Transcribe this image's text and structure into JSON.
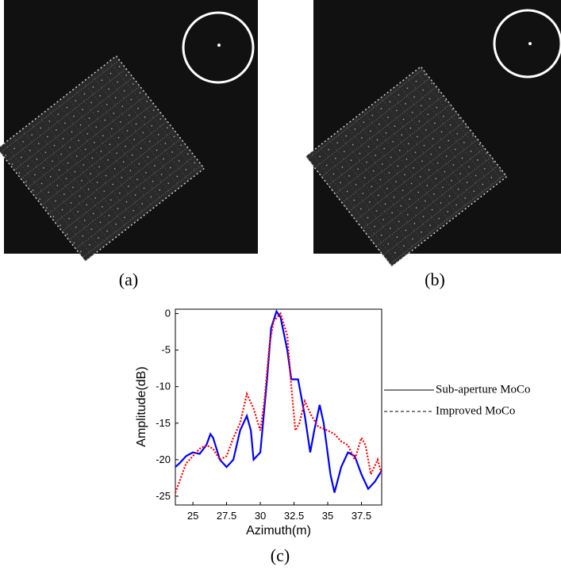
{
  "panel_labels": [
    "(a)",
    "(b)",
    "(c)"
  ],
  "chart_data": {
    "type": "line",
    "xlabel": "Azimuth(m)",
    "ylabel": "Amplitude(dB)",
    "xlim": [
      23.7,
      39
    ],
    "ylim": [
      -26.2,
      0.6
    ],
    "xticks": [
      25,
      27.5,
      30,
      32.5,
      35,
      37.5
    ],
    "yticks": [
      0,
      -5,
      -10,
      -15,
      -20,
      -25
    ],
    "series": [
      {
        "name": "Sub-aperture MoCo",
        "color": "#0000ff",
        "dash": "solid",
        "x": [
          23.7,
          24,
          24.5,
          25,
          25.5,
          26,
          26.3,
          26.5,
          27,
          27.5,
          28,
          28.5,
          29,
          29.3,
          29.5,
          30,
          30.5,
          30.8,
          31.2,
          31.5,
          32,
          32.3,
          32.8,
          33.3,
          33.7,
          34,
          34.4,
          34.7,
          35.2,
          35.5,
          36,
          36.5,
          37,
          37.5,
          38,
          38.5,
          39
        ],
        "values": [
          -21,
          -20.5,
          -19.5,
          -19,
          -19.2,
          -18,
          -16.5,
          -17,
          -20,
          -21,
          -20,
          -16,
          -14,
          -16,
          -20,
          -19,
          -9,
          -2,
          0.3,
          -0.5,
          -5,
          -9,
          -9,
          -14,
          -19,
          -16,
          -12.5,
          -15,
          -22,
          -24.5,
          -21,
          -19,
          -19.5,
          -22,
          -24,
          -23,
          -21.5
        ]
      },
      {
        "name": "Improved MoCo",
        "color": "#ff0000",
        "dash": "dotted",
        "x": [
          23.7,
          24,
          24.5,
          25,
          25.5,
          26,
          26.5,
          27,
          27.5,
          28,
          28.5,
          29,
          29.5,
          30,
          30.3,
          30.7,
          31,
          31.5,
          32,
          32.3,
          32.6,
          32.9,
          33.3,
          33.8,
          34.3,
          35,
          35.5,
          36,
          36.5,
          37,
          37.5,
          37.8,
          38.2,
          38.7,
          39
        ],
        "values": [
          -24.5,
          -23,
          -20.5,
          -19.5,
          -18.5,
          -18,
          -18.5,
          -20,
          -19.5,
          -17,
          -15,
          -11,
          -13,
          -16,
          -12,
          -4,
          -1,
          0,
          -3,
          -10,
          -16,
          -15,
          -12,
          -14,
          -15.5,
          -16,
          -16.5,
          -17.5,
          -18,
          -20,
          -17,
          -18,
          -22,
          -20,
          -22
        ]
      }
    ]
  }
}
